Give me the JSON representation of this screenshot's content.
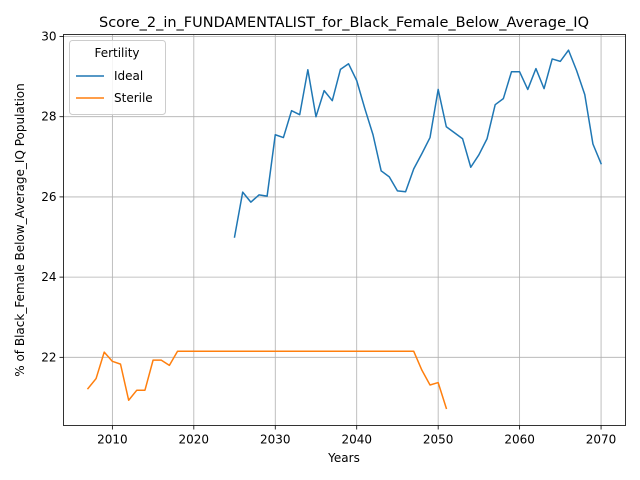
{
  "chart_data": {
    "type": "line",
    "title": "Score_2_in_FUNDAMENTALIST_for_Black_Female_Below_Average_IQ",
    "xlabel": "Years",
    "ylabel": "% of Black_Female Below_Average_IQ Population",
    "xlim": [
      2004,
      2073
    ],
    "ylim": [
      20.3,
      30.05
    ],
    "xticks": [
      2010,
      2020,
      2030,
      2040,
      2050,
      2060,
      2070
    ],
    "yticks": [
      22,
      24,
      26,
      28,
      30
    ],
    "grid": true,
    "legend": {
      "title": "Fertility",
      "placement": "top-left"
    },
    "series": [
      {
        "name": "Ideal",
        "color": "#1f77b4",
        "x": [
          2025,
          2026,
          2027,
          2028,
          2029,
          2030,
          2031,
          2032,
          2033,
          2034,
          2035,
          2036,
          2037,
          2038,
          2039,
          2040,
          2041,
          2042,
          2043,
          2044,
          2045,
          2046,
          2047,
          2048,
          2049,
          2050,
          2051,
          2052,
          2053,
          2054,
          2055,
          2056,
          2057,
          2058,
          2059,
          2060,
          2061,
          2062,
          2063,
          2064,
          2065,
          2066,
          2067,
          2068,
          2069,
          2070
        ],
        "y": [
          25.0,
          26.12,
          25.87,
          26.05,
          26.02,
          27.55,
          27.48,
          28.15,
          28.05,
          29.17,
          28.0,
          28.65,
          28.4,
          29.18,
          29.32,
          28.9,
          28.2,
          27.55,
          26.65,
          26.5,
          26.15,
          26.13,
          26.7,
          27.08,
          27.48,
          28.68,
          27.75,
          27.6,
          27.45,
          26.74,
          27.05,
          27.45,
          28.3,
          28.45,
          29.12,
          29.12,
          28.68,
          29.2,
          28.7,
          29.44,
          29.38,
          29.66,
          29.15,
          28.55,
          27.32,
          26.83
        ]
      },
      {
        "name": "Sterile",
        "color": "#ff7f0e",
        "x": [
          2007,
          2008,
          2009,
          2010,
          2011,
          2012,
          2013,
          2014,
          2015,
          2016,
          2017,
          2018,
          2019,
          2020,
          2021,
          2022,
          2023,
          2024,
          2025,
          2026,
          2027,
          2028,
          2029,
          2030,
          2031,
          2032,
          2033,
          2034,
          2035,
          2036,
          2037,
          2038,
          2039,
          2040,
          2041,
          2042,
          2043,
          2044,
          2045,
          2046,
          2047,
          2048,
          2049,
          2050,
          2051
        ],
        "y": [
          21.22,
          21.47,
          22.13,
          21.9,
          21.83,
          20.93,
          21.18,
          21.18,
          21.93,
          21.93,
          21.8,
          22.15,
          22.15,
          22.15,
          22.15,
          22.15,
          22.15,
          22.15,
          22.15,
          22.15,
          22.15,
          22.15,
          22.15,
          22.15,
          22.15,
          22.15,
          22.15,
          22.15,
          22.15,
          22.15,
          22.15,
          22.15,
          22.15,
          22.15,
          22.15,
          22.15,
          22.15,
          22.15,
          22.15,
          22.15,
          22.15,
          21.68,
          21.31,
          21.37,
          20.73
        ]
      }
    ]
  }
}
